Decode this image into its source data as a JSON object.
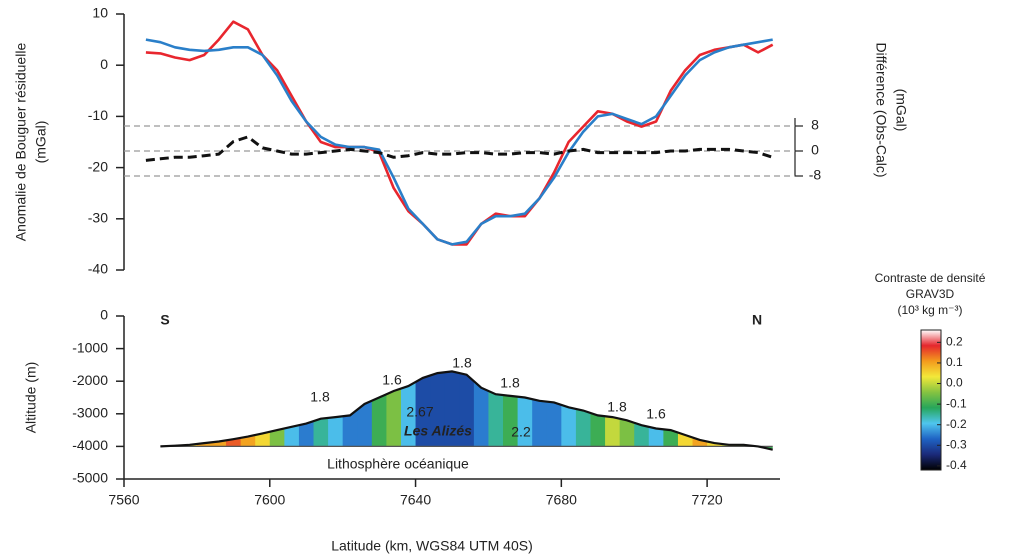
{
  "chart_data": [
    {
      "type": "line",
      "ylabel": [
        "Anomalie de Bouguer résiduelle",
        "(mGal)"
      ],
      "y2label": [
        "Différence (Obs-Calc)",
        "(mGal)"
      ],
      "xlim": [
        7560,
        7740
      ],
      "ylim": [
        -40,
        10
      ],
      "yticks": [
        10,
        0,
        -10,
        -20,
        -30,
        -40
      ],
      "y2lim": [
        -38.08,
        43.84
      ],
      "y2ticks": [
        8,
        0,
        -8
      ],
      "x": [
        7566,
        7570,
        7574,
        7578,
        7582,
        7586,
        7590,
        7594,
        7598,
        7602,
        7606,
        7610,
        7614,
        7618,
        7622,
        7626,
        7630,
        7634,
        7638,
        7642,
        7646,
        7650,
        7654,
        7658,
        7662,
        7666,
        7670,
        7674,
        7678,
        7682,
        7686,
        7690,
        7694,
        7698,
        7702,
        7706,
        7710,
        7714,
        7718,
        7722,
        7726,
        7730,
        7734,
        7738
      ],
      "series": [
        {
          "color": "#e8262e",
          "values": [
            2.5,
            2.3,
            1.5,
            1,
            2,
            5,
            8.5,
            7,
            2,
            -1,
            -6,
            -11,
            -15,
            -16,
            -16,
            -16,
            -17,
            -24,
            -28.5,
            -31,
            -34,
            -35,
            -35,
            -31,
            -29,
            -29.5,
            -29.5,
            -26,
            -21,
            -15,
            -12,
            -9,
            -9.5,
            -11,
            -12,
            -11,
            -5,
            -1,
            2,
            3,
            3.5,
            4,
            2.5,
            4
          ]
        },
        {
          "color": "#2a7fc9",
          "values": [
            5,
            4.5,
            3.5,
            3,
            2.8,
            3,
            3.5,
            3.5,
            2,
            -2,
            -7,
            -11,
            -14,
            -15.5,
            -16,
            -16,
            -16.5,
            -22,
            -28,
            -31,
            -34,
            -35,
            -34.5,
            -31,
            -29.5,
            -29.5,
            -29,
            -26,
            -22,
            -17,
            -13,
            -10,
            -9.5,
            -10.5,
            -11.5,
            -10,
            -6,
            -2,
            1,
            2.5,
            3.5,
            4,
            4.5,
            5
          ]
        },
        {
          "color": "#111111",
          "axis": "y2",
          "dashed": true,
          "values": [
            -3,
            -2.5,
            -2,
            -2,
            -1.5,
            -1,
            3,
            4.5,
            1,
            0,
            -1,
            -1,
            -0.5,
            0,
            0.5,
            0,
            -0.5,
            -2,
            -1.5,
            -0.5,
            -1,
            -1,
            -0.5,
            -0.5,
            -1,
            -1,
            -0.5,
            -0.5,
            -1,
            0,
            0.5,
            -0.5,
            -0.5,
            -0.5,
            -0.5,
            -0.5,
            0,
            0,
            0.5,
            0.5,
            0.5,
            0,
            -0.5,
            -2
          ]
        }
      ]
    },
    {
      "type": "section",
      "ylabel": "Altitude (m)",
      "xlabel": "Latitude (km, WGS84 UTM 40S)",
      "xlim": [
        7560,
        7740
      ],
      "xticks": [
        7560,
        7600,
        7640,
        7680,
        7720
      ],
      "ylim": [
        -5000,
        0
      ],
      "yticks": [
        0,
        -1000,
        -2000,
        -3000,
        -4000,
        -5000
      ],
      "base": -4000,
      "x": [
        7570,
        7574,
        7578,
        7582,
        7586,
        7590,
        7594,
        7598,
        7602,
        7606,
        7610,
        7614,
        7618,
        7622,
        7626,
        7630,
        7634,
        7638,
        7642,
        7646,
        7650,
        7654,
        7658,
        7662,
        7666,
        7670,
        7674,
        7678,
        7682,
        7686,
        7690,
        7694,
        7698,
        7702,
        7706,
        7710,
        7714,
        7718,
        7722,
        7726,
        7730,
        7734,
        7738
      ],
      "topography": [
        -4000,
        -3980,
        -3950,
        -3900,
        -3850,
        -3780,
        -3700,
        -3600,
        -3500,
        -3400,
        -3300,
        -3150,
        -3100,
        -3050,
        -2700,
        -2500,
        -2300,
        -2150,
        -1900,
        -1750,
        -1700,
        -1800,
        -2200,
        -2400,
        -2450,
        -2500,
        -2600,
        -2650,
        -2800,
        -2900,
        -3050,
        -3100,
        -3200,
        -3350,
        -3450,
        -3500,
        -3650,
        -3800,
        -3900,
        -3950,
        -3950,
        -4000,
        -4100
      ],
      "density_contrast": [
        -0.05,
        0,
        0.05,
        0.1,
        0.1,
        0.15,
        0.1,
        0.05,
        -0.05,
        -0.2,
        -0.25,
        -0.15,
        -0.2,
        -0.25,
        -0.25,
        -0.1,
        -0.05,
        -0.2,
        -0.3,
        -0.3,
        -0.3,
        -0.3,
        -0.25,
        -0.15,
        -0.1,
        -0.2,
        -0.25,
        -0.25,
        -0.2,
        -0.15,
        -0.1,
        0,
        -0.05,
        -0.15,
        -0.2,
        -0.1,
        0.05,
        0.1,
        0.05,
        0,
        -0.05,
        -0.1,
        -0.1
      ],
      "annotations": [
        "S",
        "N",
        "1.8",
        "1.6",
        "1.8",
        "1.8",
        "1.8",
        "1.6",
        "2.67",
        "Les Alizés",
        "2.2",
        "Lithosphère océanique"
      ],
      "colorbar_title": [
        "Contraste de densité",
        "GRAV3D",
        "(10³ kg m⁻³)"
      ],
      "clim": [
        -0.42,
        0.26
      ],
      "colorscale": [
        "#000000",
        "#1b2a7a",
        "#1f63c4",
        "#4fc6ee",
        "#27a65a",
        "#86c341",
        "#f3e839",
        "#f39a1d",
        "#e5262d",
        "#ffffff"
      ],
      "cticks": [
        0.2,
        0.1,
        {
          "value": 0,
          "label": "0.0"
        },
        -0.1,
        -0.2,
        -0.3,
        -0.4
      ]
    }
  ]
}
